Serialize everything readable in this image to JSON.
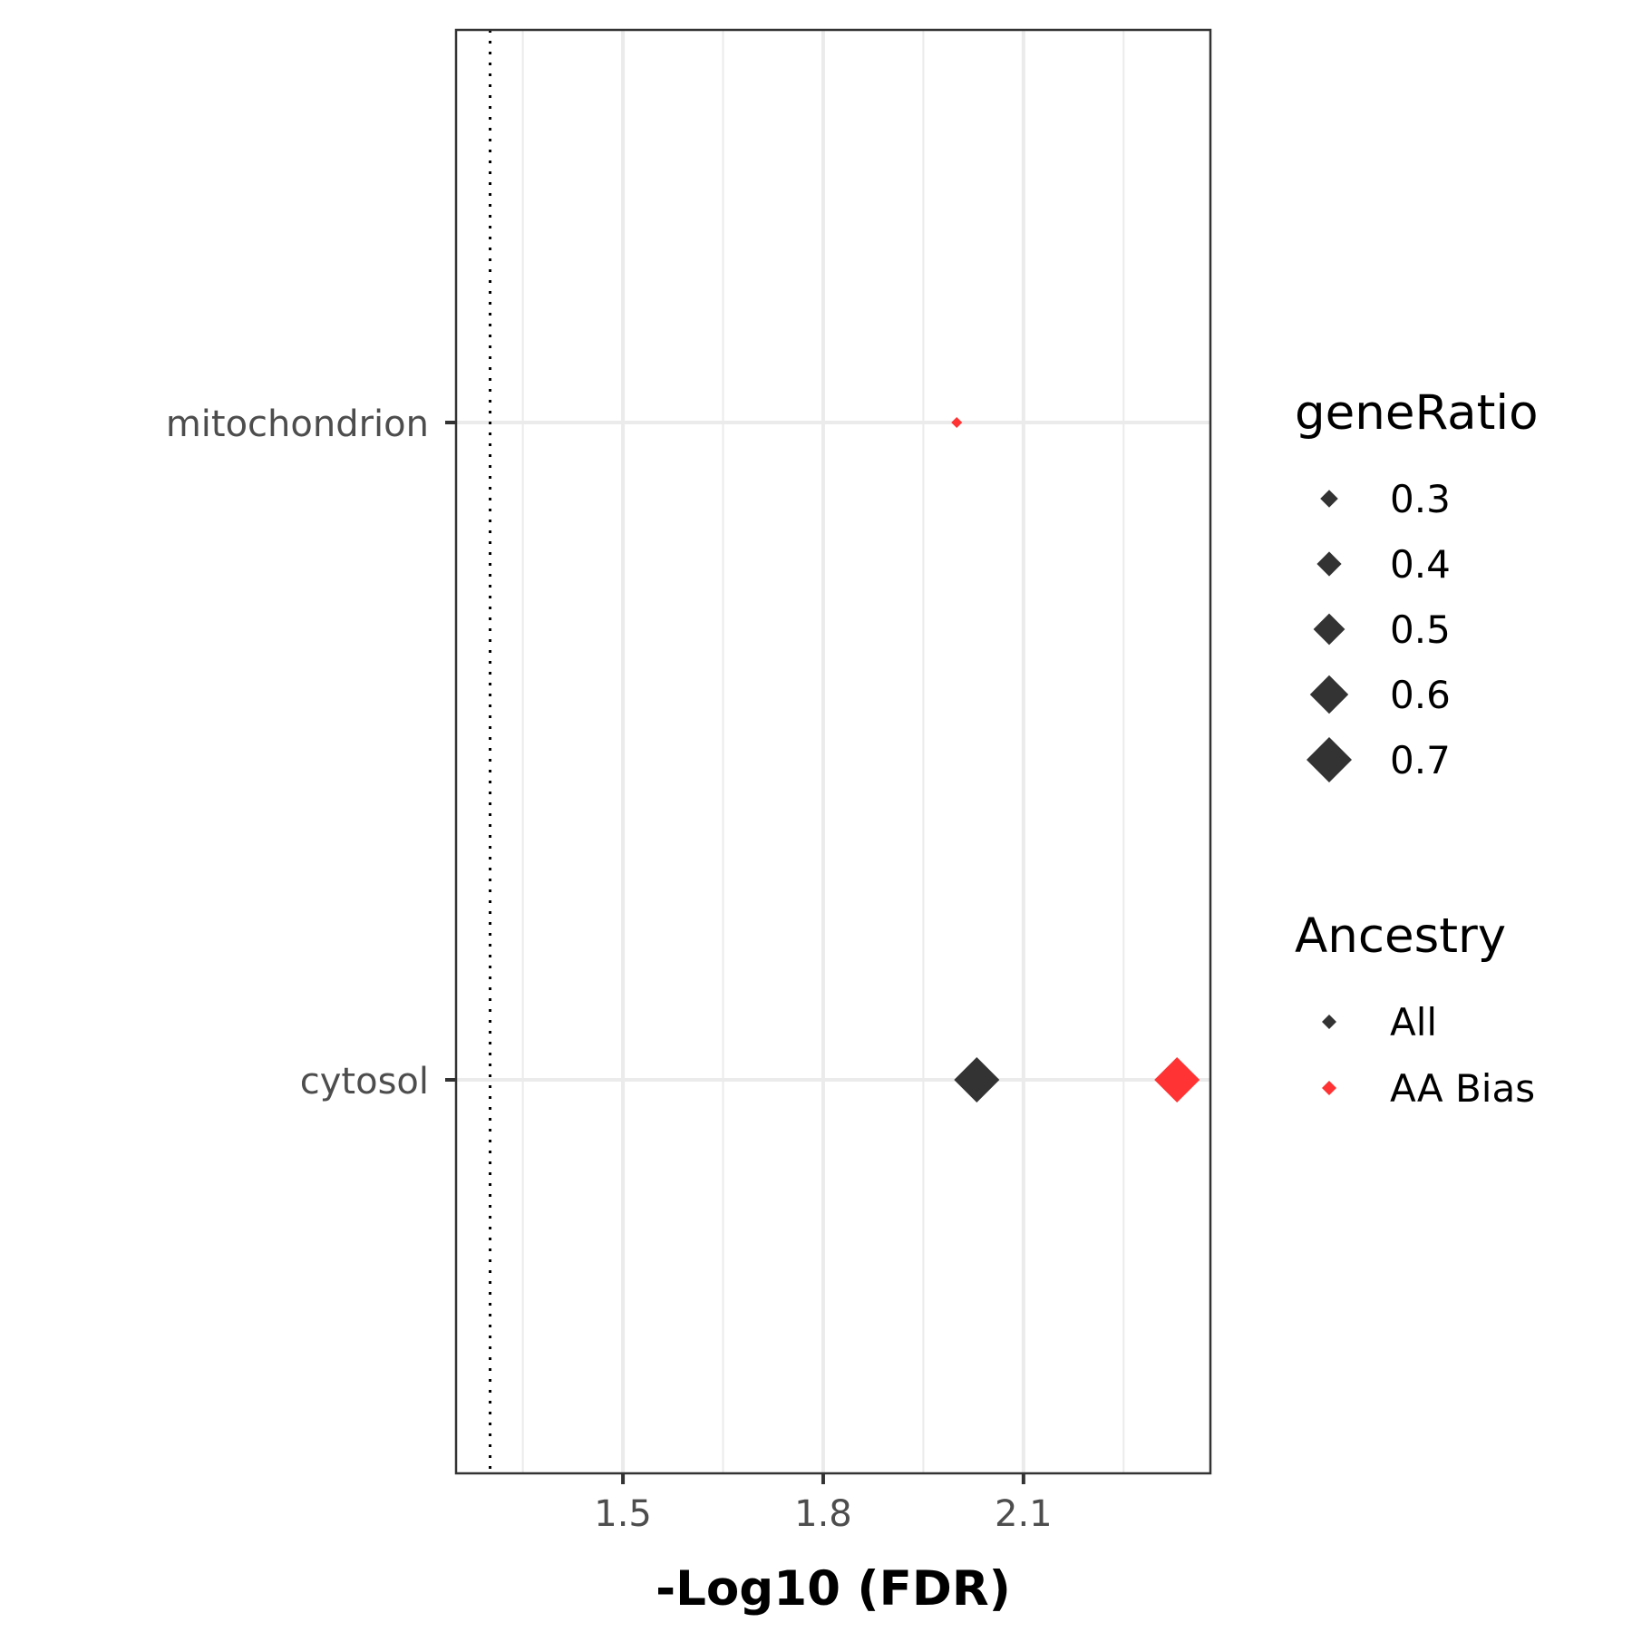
{
  "chart_data": {
    "type": "scatter",
    "title": "",
    "xlabel": "-Log10 (FDR)",
    "ylabel": "",
    "xlim": [
      1.25,
      2.38
    ],
    "x_ticks": [
      "1.5",
      "1.8",
      "2.1"
    ],
    "x_tick_values": [
      1.5,
      1.8,
      2.1
    ],
    "x_minor_grid": [
      1.35,
      1.65,
      1.95,
      2.25
    ],
    "categories": [
      "mitochondrion",
      "cytosol"
    ],
    "reference_line": {
      "x": 1.301,
      "style": "dotted"
    },
    "grid": true,
    "series": [
      {
        "name": "All",
        "color": "#333333",
        "points": [
          {
            "category": "cytosol",
            "x": 2.03,
            "geneRatio": 0.7
          }
        ]
      },
      {
        "name": "AA Bias",
        "color": "#ff3333",
        "points": [
          {
            "category": "mitochondrion",
            "x": 2.0,
            "geneRatio": 0.2
          },
          {
            "category": "cytosol",
            "x": 2.33,
            "geneRatio": 0.7
          }
        ]
      }
    ],
    "legend_size": {
      "title": "geneRatio",
      "entries": [
        {
          "label": "0.3",
          "value": 0.3
        },
        {
          "label": "0.4",
          "value": 0.4
        },
        {
          "label": "0.5",
          "value": 0.5
        },
        {
          "label": "0.6",
          "value": 0.6
        },
        {
          "label": "0.7",
          "value": 0.7
        }
      ]
    },
    "legend_color": {
      "title": "Ancestry",
      "entries": [
        {
          "label": "All",
          "color": "#333333"
        },
        {
          "label": "AA Bias",
          "color": "#ff3333"
        }
      ]
    },
    "legend_placement": "right"
  }
}
